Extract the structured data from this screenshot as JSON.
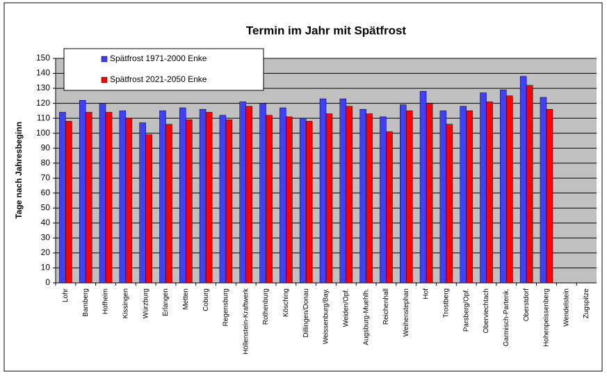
{
  "chart_data": {
    "type": "bar",
    "title": "Termin im Jahr mit Spätfrost",
    "y_label": "Tage nach Jahresbeginn",
    "categories": [
      "Lohr",
      "Bamberg",
      "Hofheim",
      "Kissingen",
      "Würzburg",
      "Erlangen",
      "Metten",
      "Coburg",
      "Regensburg",
      "Höllenstein-Kraftwerk",
      "Rothenburg",
      "Kösching",
      "Dillingen/Donau",
      "Weissenburg/Bay.",
      "Weiden/Opf.",
      "Augsburg-Muehlh.",
      "Reichenhall",
      "Weihenstephan",
      "Hof",
      "Trostberg",
      "Parsberg/Opf.",
      "Oberviechtach",
      "Garmisch-Partenk.",
      "Oberstdorf",
      "Hohenpeissenberg",
      "Wendelstein",
      "Zugspitze"
    ],
    "series": [
      {
        "name": "Spätfrost 1971-2000 Enke",
        "color": "#3f3fff",
        "values": [
          114,
          122,
          120,
          115,
          107,
          115,
          117,
          116,
          112,
          121,
          120,
          117,
          110,
          123,
          123,
          116,
          111,
          119,
          128,
          115,
          118,
          127,
          129,
          138,
          124,
          null,
          null
        ]
      },
      {
        "name": "Spätfrost 2021-2050 Enke",
        "color": "#ff0000",
        "values": [
          108,
          114,
          114,
          110,
          99,
          106,
          109,
          114,
          109,
          118,
          112,
          111,
          108,
          113,
          118,
          113,
          101,
          115,
          120,
          106,
          115,
          121,
          125,
          132,
          116,
          null,
          null
        ]
      }
    ],
    "ylim": [
      0,
      150
    ],
    "yticks": [
      0,
      10,
      20,
      30,
      40,
      50,
      60,
      70,
      80,
      90,
      100,
      110,
      120,
      130,
      140,
      150
    ],
    "grid": true,
    "legend": "top-left"
  }
}
